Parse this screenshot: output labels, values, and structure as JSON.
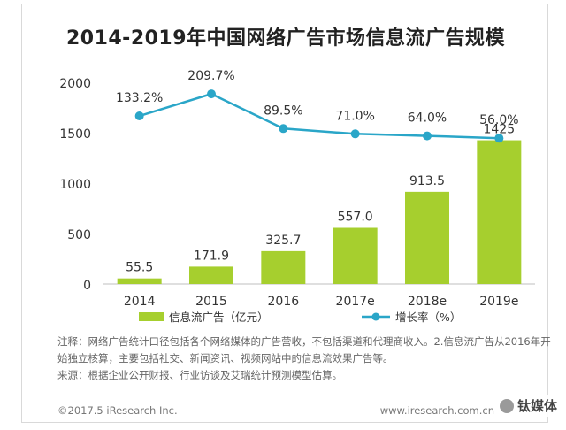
{
  "chart_data": {
    "type": "bar",
    "title": "2014-2019年中国网络广告市场信息流广告规模",
    "categories": [
      "2014",
      "2015",
      "2016",
      "2017e",
      "2018e",
      "2019e"
    ],
    "series": [
      {
        "name": "信息流广告（亿元）",
        "type": "bar",
        "values": [
          55.5,
          171.9,
          325.7,
          557.0,
          913.5,
          1425
        ],
        "labels": [
          "55.5",
          "171.9",
          "325.7",
          "557.0",
          "913.5",
          "1425"
        ],
        "color": "#a6cf2e"
      },
      {
        "name": "增长率（%）",
        "type": "line",
        "values": [
          133.2,
          209.7,
          89.5,
          71.0,
          64.0,
          56.0
        ],
        "labels": [
          "133.2%",
          "209.7%",
          "89.5%",
          "71.0%",
          "64.0%",
          "56.0%"
        ],
        "color": "#2aa6c8"
      }
    ],
    "yticks": [
      "0",
      "500",
      "1000",
      "1500",
      "2000"
    ],
    "ylim": [
      0,
      2000
    ],
    "line_ylim": [
      -450,
      250
    ],
    "legend_placement": "bottom",
    "grid": false
  },
  "notes": [
    "注释：网络广告统计口径包括各个网络媒体的广告营收，不包括渠道和代理商收入。2.信息流广告从2016年开始独立核算，主要包括社交、新闻资讯、视频网站中的信息流效果广告等。",
    "来源：根据企业公开财报、行业访谈及艾瑞统计预测模型估算。"
  ],
  "footer": {
    "copyright": "©2017.5 iResearch Inc.",
    "url": "www.iresearch.com.cn",
    "watermark": "钛媒体"
  }
}
